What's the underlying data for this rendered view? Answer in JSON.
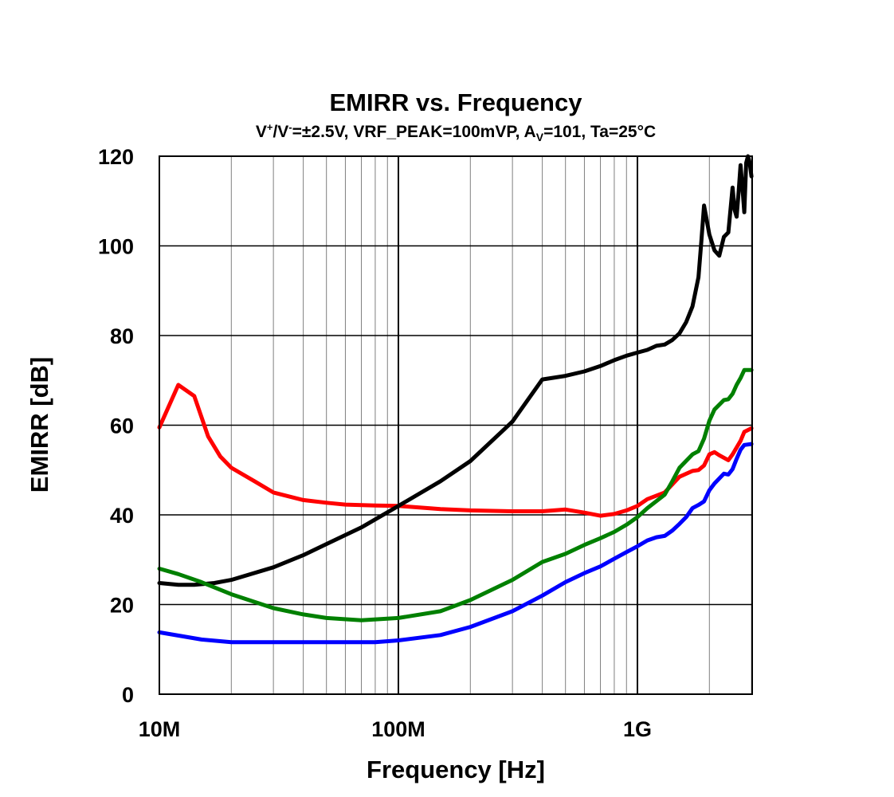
{
  "chart_data": {
    "type": "line",
    "title": "EMIRR vs. Frequency",
    "subtitle": {
      "part1": "V",
      "sup1": "+",
      "part2": "/V",
      "sup2": "-",
      "part3": "=±2.5V, VRF_PEAK=100mVP, A",
      "sub1": "V",
      "part4": "=101, Ta=25°C"
    },
    "xlabel": "Frequency [Hz]",
    "ylabel": "EMIRR [dB]",
    "x_scale": "log",
    "xlim": [
      10000000,
      3000000000
    ],
    "ylim": [
      0,
      120
    ],
    "x_ticks": [
      {
        "value": 10000000,
        "label": "10M"
      },
      {
        "value": 100000000,
        "label": "100M"
      },
      {
        "value": 1000000000,
        "label": "1G"
      }
    ],
    "y_ticks": [
      {
        "value": 0,
        "label": "0"
      },
      {
        "value": 20,
        "label": "20"
      },
      {
        "value": 40,
        "label": "40"
      },
      {
        "value": 60,
        "label": "60"
      },
      {
        "value": 80,
        "label": "80"
      },
      {
        "value": 100,
        "label": "100"
      },
      {
        "value": 120,
        "label": "120"
      }
    ],
    "grid": true,
    "legend": "none",
    "series": [
      {
        "color": "#ff0000",
        "points": [
          [
            10000000,
            59.5
          ],
          [
            12000000,
            69
          ],
          [
            14000000,
            66.5
          ],
          [
            16000000,
            57.5
          ],
          [
            18000000,
            53
          ],
          [
            20000000,
            50.5
          ],
          [
            25000000,
            47.5
          ],
          [
            30000000,
            45
          ],
          [
            40000000,
            43.3
          ],
          [
            50000000,
            42.7
          ],
          [
            60000000,
            42.3
          ],
          [
            80000000,
            42.1
          ],
          [
            100000000,
            42
          ],
          [
            150000000,
            41.3
          ],
          [
            200000000,
            41
          ],
          [
            300000000,
            40.8
          ],
          [
            400000000,
            40.8
          ],
          [
            500000000,
            41.2
          ],
          [
            600000000,
            40.5
          ],
          [
            700000000,
            39.8
          ],
          [
            800000000,
            40.2
          ],
          [
            900000000,
            41
          ],
          [
            1000000000,
            42
          ],
          [
            1100000000,
            43.5
          ],
          [
            1300000000,
            45
          ],
          [
            1500000000,
            48.5
          ],
          [
            1700000000,
            49.8
          ],
          [
            1800000000,
            50
          ],
          [
            1900000000,
            51
          ],
          [
            2000000000,
            53.5
          ],
          [
            2100000000,
            54
          ],
          [
            2200000000,
            53.3
          ],
          [
            2400000000,
            52.2
          ],
          [
            2500000000,
            53.5
          ],
          [
            2700000000,
            56.5
          ],
          [
            2800000000,
            58.5
          ],
          [
            3000000000,
            59.3
          ]
        ]
      },
      {
        "color": "#000000",
        "points": [
          [
            10000000,
            24.8
          ],
          [
            12000000,
            24.4
          ],
          [
            14000000,
            24.4
          ],
          [
            17000000,
            24.8
          ],
          [
            20000000,
            25.5
          ],
          [
            30000000,
            28.3
          ],
          [
            40000000,
            31
          ],
          [
            50000000,
            33.5
          ],
          [
            70000000,
            37.2
          ],
          [
            100000000,
            42
          ],
          [
            150000000,
            47.5
          ],
          [
            200000000,
            52
          ],
          [
            300000000,
            60.8
          ],
          [
            400000000,
            70.2
          ],
          [
            500000000,
            71
          ],
          [
            600000000,
            72
          ],
          [
            700000000,
            73.2
          ],
          [
            800000000,
            74.5
          ],
          [
            900000000,
            75.5
          ],
          [
            1000000000,
            76.2
          ],
          [
            1100000000,
            76.8
          ],
          [
            1200000000,
            77.7
          ],
          [
            1300000000,
            78
          ],
          [
            1400000000,
            79
          ],
          [
            1500000000,
            80.5
          ],
          [
            1600000000,
            83
          ],
          [
            1700000000,
            86.5
          ],
          [
            1800000000,
            93
          ],
          [
            1850000000,
            101
          ],
          [
            1900000000,
            109
          ],
          [
            2000000000,
            102.5
          ],
          [
            2100000000,
            99
          ],
          [
            2200000000,
            97.8
          ],
          [
            2300000000,
            102
          ],
          [
            2400000000,
            103
          ],
          [
            2500000000,
            113
          ],
          [
            2550000000,
            108
          ],
          [
            2600000000,
            106.5
          ],
          [
            2650000000,
            112
          ],
          [
            2700000000,
            118
          ],
          [
            2750000000,
            113
          ],
          [
            2800000000,
            107.5
          ],
          [
            2850000000,
            118.5
          ],
          [
            2900000000,
            120
          ],
          [
            2950000000,
            118.5
          ],
          [
            3000000000,
            115.5
          ]
        ]
      },
      {
        "color": "#008000",
        "points": [
          [
            10000000,
            28
          ],
          [
            12000000,
            26.8
          ],
          [
            15000000,
            25
          ],
          [
            20000000,
            22.3
          ],
          [
            30000000,
            19.2
          ],
          [
            40000000,
            17.8
          ],
          [
            50000000,
            17
          ],
          [
            70000000,
            16.5
          ],
          [
            100000000,
            17
          ],
          [
            150000000,
            18.5
          ],
          [
            200000000,
            21
          ],
          [
            300000000,
            25.5
          ],
          [
            400000000,
            29.5
          ],
          [
            500000000,
            31.3
          ],
          [
            600000000,
            33.3
          ],
          [
            700000000,
            34.8
          ],
          [
            800000000,
            36.2
          ],
          [
            900000000,
            37.8
          ],
          [
            1000000000,
            39.5
          ],
          [
            1100000000,
            41.5
          ],
          [
            1300000000,
            44.5
          ],
          [
            1400000000,
            47.5
          ],
          [
            1500000000,
            50.5
          ],
          [
            1700000000,
            53.5
          ],
          [
            1800000000,
            54.2
          ],
          [
            1900000000,
            57
          ],
          [
            2000000000,
            61
          ],
          [
            2100000000,
            63.5
          ],
          [
            2300000000,
            65.6
          ],
          [
            2400000000,
            65.8
          ],
          [
            2500000000,
            67
          ],
          [
            2600000000,
            69
          ],
          [
            2700000000,
            70.5
          ],
          [
            2800000000,
            72.3
          ],
          [
            3000000000,
            72.3
          ]
        ]
      },
      {
        "color": "#0000ff",
        "points": [
          [
            10000000,
            13.8
          ],
          [
            15000000,
            12.2
          ],
          [
            20000000,
            11.6
          ],
          [
            30000000,
            11.6
          ],
          [
            50000000,
            11.6
          ],
          [
            80000000,
            11.6
          ],
          [
            100000000,
            12
          ],
          [
            150000000,
            13.2
          ],
          [
            200000000,
            15
          ],
          [
            300000000,
            18.5
          ],
          [
            400000000,
            22
          ],
          [
            500000000,
            25
          ],
          [
            600000000,
            27
          ],
          [
            700000000,
            28.5
          ],
          [
            800000000,
            30.2
          ],
          [
            900000000,
            31.7
          ],
          [
            1000000000,
            33
          ],
          [
            1100000000,
            34.3
          ],
          [
            1200000000,
            35
          ],
          [
            1300000000,
            35.3
          ],
          [
            1400000000,
            36.5
          ],
          [
            1500000000,
            38
          ],
          [
            1600000000,
            39.5
          ],
          [
            1700000000,
            41.5
          ],
          [
            1800000000,
            42.2
          ],
          [
            1900000000,
            43
          ],
          [
            2000000000,
            45.5
          ],
          [
            2100000000,
            47
          ],
          [
            2300000000,
            49.2
          ],
          [
            2400000000,
            49
          ],
          [
            2500000000,
            50.2
          ],
          [
            2600000000,
            52.5
          ],
          [
            2700000000,
            54.5
          ],
          [
            2800000000,
            55.6
          ],
          [
            3000000000,
            55.8
          ]
        ]
      }
    ]
  }
}
